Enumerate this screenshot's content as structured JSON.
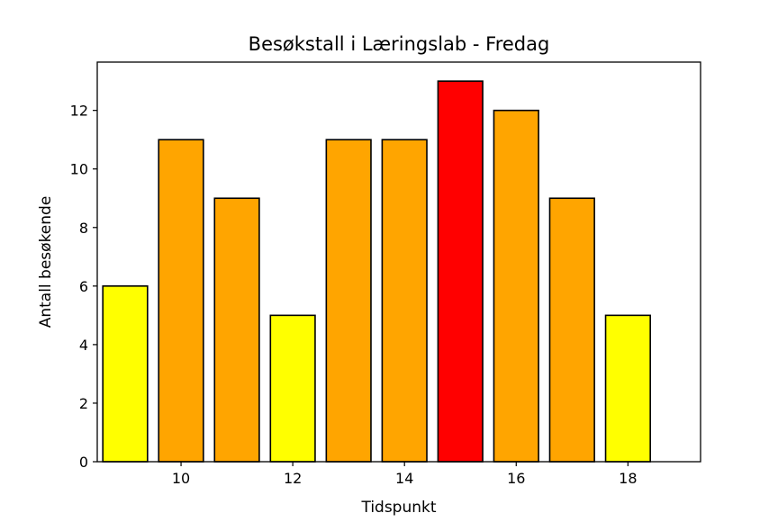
{
  "chart_data": {
    "type": "bar",
    "title": "Besøkstall i Læringslab - Fredag",
    "xlabel": "Tidspunkt",
    "ylabel": "Antall besøkende",
    "x": [
      9,
      10,
      11,
      12,
      13,
      14,
      15,
      16,
      17,
      18
    ],
    "values": [
      6,
      11,
      9,
      5,
      11,
      11,
      13,
      12,
      9,
      5
    ],
    "bar_colors": [
      "#ffff00",
      "#ffa500",
      "#ffa500",
      "#ffff00",
      "#ffa500",
      "#ffa500",
      "#ff0000",
      "#ffa500",
      "#ffa500",
      "#ffff00"
    ],
    "edge_color": "#000000",
    "xlim": [
      8.5,
      19.3
    ],
    "ylim": [
      0,
      13.65
    ],
    "xticks": [
      10,
      12,
      14,
      16,
      18
    ],
    "yticks": [
      0,
      2,
      4,
      6,
      8,
      10,
      12
    ],
    "grid": false,
    "legend": false
  }
}
